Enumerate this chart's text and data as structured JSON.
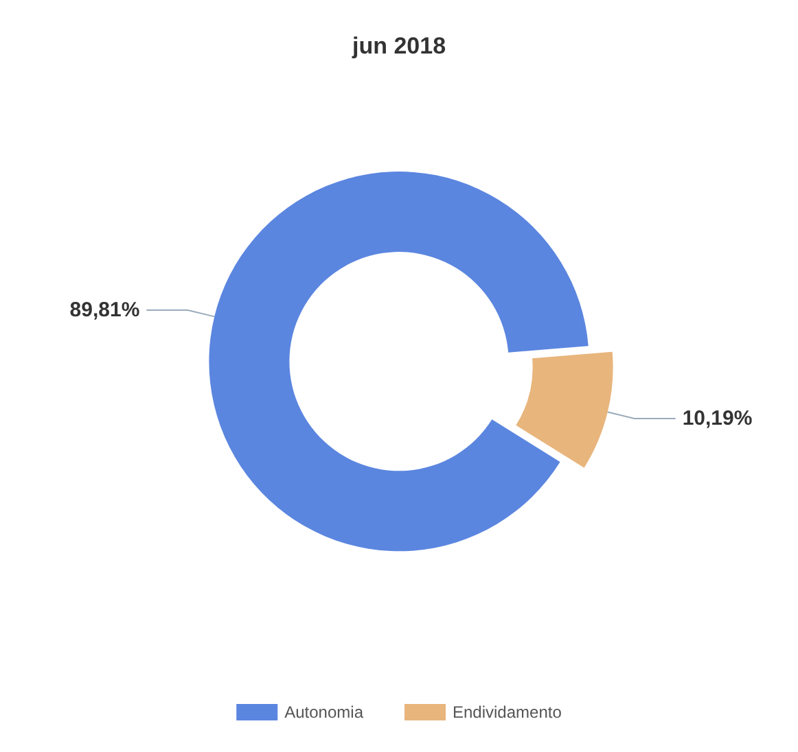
{
  "chart_data": {
    "type": "donut",
    "title": "jun 2018",
    "categories": [
      "Autonomia",
      "Endividamento"
    ],
    "values": [
      89.81,
      10.19
    ],
    "colors": [
      "#5b86e0",
      "#e8b57c"
    ],
    "value_labels": [
      "89,81%",
      "10,19%"
    ],
    "legend": "bottom"
  }
}
